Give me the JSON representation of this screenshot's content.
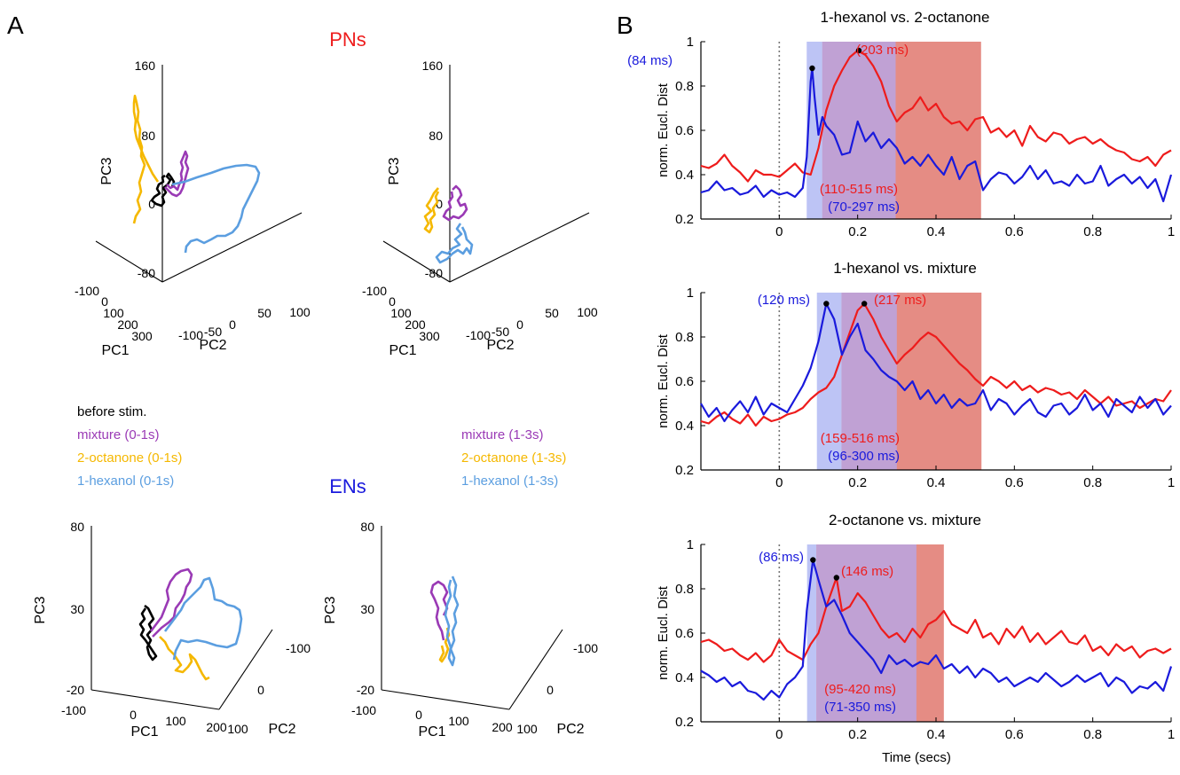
{
  "panel_labels": {
    "a": "A",
    "b": "B"
  },
  "group_titles": {
    "pn": "PNs",
    "en": "ENs"
  },
  "colors": {
    "before": "#000000",
    "mixture": "#9a3ab5",
    "octanone": "#f5b800",
    "hexanol": "#5b9ee0",
    "red": "#ee1c1c",
    "blue": "#1a1adc",
    "pn_title": "#ee1c1c",
    "en_title": "#1a1add",
    "shade_blue": "#bdc4f5",
    "shade_red": "#e58c84",
    "shade_purple": "#c0a1d4"
  },
  "legend_left": [
    {
      "label": "before stim.",
      "color": "#000000"
    },
    {
      "label": "mixture (0-1s)",
      "color": "#9a3ab5"
    },
    {
      "label": "2-octanone (0-1s)",
      "color": "#f5b800"
    },
    {
      "label": "1-hexanol (0-1s)",
      "color": "#5b9ee0"
    }
  ],
  "legend_right": [
    {
      "label": "mixture (1-3s)",
      "color": "#9a3ab5"
    },
    {
      "label": "2-octanone (1-3s)",
      "color": "#f5b800"
    },
    {
      "label": "1-hexanol (1-3s)",
      "color": "#5b9ee0"
    }
  ],
  "pca_pn": {
    "pc3_ticks": [
      "160",
      "80",
      "0",
      "-80"
    ],
    "pc1_ticks": [
      "-100",
      "0",
      "100",
      "200",
      "300"
    ],
    "pc2_ticks": [
      "-100",
      "-50",
      "0",
      "50",
      "100"
    ],
    "labels": {
      "pc1": "PC1",
      "pc2": "PC2",
      "pc3": "PC3"
    }
  },
  "pca_en": {
    "pc3_ticks": [
      "80",
      "30",
      "-20"
    ],
    "pc1_ticks": [
      "-100",
      "0",
      "100",
      "200"
    ],
    "pc2_ticks": [
      "-100",
      "0",
      "100"
    ],
    "labels": {
      "pc1": "PC1",
      "pc2": "PC2",
      "pc3": "PC3"
    }
  },
  "chart_data": [
    {
      "type": "line",
      "title": "1-hexanol vs. 2-octanone",
      "xlabel": "",
      "ylabel": "norm. Eucl. Dist",
      "xlim": [
        -0.2,
        1
      ],
      "ylim": [
        0.2,
        1
      ],
      "x_ticks": [
        "0",
        "0.2",
        "0.4",
        "0.6",
        "0.8",
        "1"
      ],
      "y_ticks": [
        "0.2",
        "0.4",
        "0.6",
        "0.8",
        "1"
      ],
      "shade_blue": [
        0.07,
        0.297
      ],
      "shade_red": [
        0.11,
        0.515
      ],
      "annotations": [
        {
          "text": "(84 ms)",
          "color": "blue"
        },
        {
          "text": "(203 ms)",
          "color": "red"
        },
        {
          "text": "(110-515 ms)",
          "color": "red"
        },
        {
          "text": "(70-297 ms)",
          "color": "blue"
        }
      ],
      "peaks": [
        {
          "x": 0.084,
          "y": 0.88
        },
        {
          "x": 0.203,
          "y": 0.96
        }
      ],
      "series": [
        {
          "color": "red",
          "x": [
            -0.2,
            -0.18,
            -0.16,
            -0.14,
            -0.12,
            -0.1,
            -0.08,
            -0.06,
            -0.04,
            -0.02,
            0,
            0.02,
            0.04,
            0.06,
            0.08,
            0.1,
            0.12,
            0.14,
            0.16,
            0.18,
            0.2,
            0.22,
            0.24,
            0.26,
            0.28,
            0.3,
            0.32,
            0.34,
            0.36,
            0.38,
            0.4,
            0.42,
            0.44,
            0.46,
            0.48,
            0.5,
            0.52,
            0.54,
            0.56,
            0.58,
            0.6,
            0.62,
            0.64,
            0.66,
            0.68,
            0.7,
            0.72,
            0.74,
            0.76,
            0.78,
            0.8,
            0.82,
            0.84,
            0.86,
            0.88,
            0.9,
            0.92,
            0.94,
            0.96,
            0.98,
            1
          ],
          "y": [
            0.44,
            0.43,
            0.45,
            0.49,
            0.44,
            0.41,
            0.37,
            0.42,
            0.4,
            0.4,
            0.39,
            0.42,
            0.45,
            0.41,
            0.4,
            0.52,
            0.69,
            0.8,
            0.87,
            0.93,
            0.96,
            0.94,
            0.89,
            0.82,
            0.71,
            0.64,
            0.68,
            0.7,
            0.75,
            0.69,
            0.72,
            0.66,
            0.63,
            0.64,
            0.6,
            0.65,
            0.66,
            0.59,
            0.61,
            0.57,
            0.6,
            0.53,
            0.62,
            0.57,
            0.55,
            0.59,
            0.58,
            0.54,
            0.56,
            0.57,
            0.54,
            0.56,
            0.53,
            0.51,
            0.5,
            0.47,
            0.46,
            0.48,
            0.44,
            0.49,
            0.51
          ]
        },
        {
          "color": "blue",
          "x": [
            -0.2,
            -0.18,
            -0.16,
            -0.14,
            -0.12,
            -0.1,
            -0.08,
            -0.06,
            -0.04,
            -0.02,
            0,
            0.02,
            0.04,
            0.06,
            0.07,
            0.08,
            0.084,
            0.09,
            0.1,
            0.11,
            0.12,
            0.14,
            0.16,
            0.18,
            0.2,
            0.22,
            0.24,
            0.26,
            0.28,
            0.3,
            0.32,
            0.34,
            0.36,
            0.38,
            0.4,
            0.42,
            0.44,
            0.46,
            0.48,
            0.5,
            0.52,
            0.54,
            0.56,
            0.58,
            0.6,
            0.62,
            0.64,
            0.66,
            0.68,
            0.7,
            0.72,
            0.74,
            0.76,
            0.78,
            0.8,
            0.82,
            0.84,
            0.86,
            0.88,
            0.9,
            0.92,
            0.94,
            0.96,
            0.98,
            1
          ],
          "y": [
            0.32,
            0.33,
            0.37,
            0.33,
            0.34,
            0.31,
            0.32,
            0.35,
            0.3,
            0.33,
            0.31,
            0.32,
            0.3,
            0.34,
            0.48,
            0.82,
            0.88,
            0.75,
            0.58,
            0.66,
            0.62,
            0.58,
            0.49,
            0.5,
            0.64,
            0.55,
            0.59,
            0.52,
            0.56,
            0.52,
            0.45,
            0.48,
            0.44,
            0.49,
            0.44,
            0.4,
            0.48,
            0.38,
            0.44,
            0.46,
            0.33,
            0.38,
            0.41,
            0.4,
            0.36,
            0.39,
            0.44,
            0.38,
            0.42,
            0.36,
            0.37,
            0.35,
            0.4,
            0.36,
            0.37,
            0.44,
            0.35,
            0.38,
            0.4,
            0.36,
            0.39,
            0.34,
            0.38,
            0.28,
            0.4
          ]
        }
      ]
    },
    {
      "type": "line",
      "title": "1-hexanol vs. mixture",
      "xlabel": "",
      "ylabel": "norm. Eucl. Dist",
      "xlim": [
        -0.2,
        1
      ],
      "ylim": [
        0.2,
        1
      ],
      "x_ticks": [
        "0",
        "0.2",
        "0.4",
        "0.6",
        "0.8",
        "1"
      ],
      "y_ticks": [
        "0.2",
        "0.4",
        "0.6",
        "0.8",
        "1"
      ],
      "shade_blue": [
        0.096,
        0.3
      ],
      "shade_red": [
        0.159,
        0.516
      ],
      "annotations": [
        {
          "text": "(120 ms)",
          "color": "blue"
        },
        {
          "text": "(217 ms)",
          "color": "red"
        },
        {
          "text": "(159-516 ms)",
          "color": "red"
        },
        {
          "text": "(96-300 ms)",
          "color": "blue"
        }
      ],
      "peaks": [
        {
          "x": 0.12,
          "y": 0.95
        },
        {
          "x": 0.217,
          "y": 0.95
        }
      ],
      "series": [
        {
          "color": "red",
          "x": [
            -0.2,
            -0.18,
            -0.16,
            -0.14,
            -0.12,
            -0.1,
            -0.08,
            -0.06,
            -0.04,
            -0.02,
            0,
            0.02,
            0.04,
            0.06,
            0.08,
            0.1,
            0.12,
            0.14,
            0.16,
            0.18,
            0.2,
            0.217,
            0.24,
            0.26,
            0.28,
            0.3,
            0.32,
            0.34,
            0.36,
            0.38,
            0.4,
            0.42,
            0.44,
            0.46,
            0.48,
            0.5,
            0.52,
            0.54,
            0.56,
            0.58,
            0.6,
            0.62,
            0.64,
            0.66,
            0.68,
            0.7,
            0.72,
            0.74,
            0.76,
            0.78,
            0.8,
            0.82,
            0.84,
            0.86,
            0.88,
            0.9,
            0.92,
            0.94,
            0.96,
            0.98,
            1
          ],
          "y": [
            0.42,
            0.41,
            0.44,
            0.46,
            0.43,
            0.41,
            0.45,
            0.4,
            0.44,
            0.42,
            0.43,
            0.45,
            0.46,
            0.48,
            0.52,
            0.55,
            0.57,
            0.62,
            0.72,
            0.82,
            0.92,
            0.95,
            0.88,
            0.8,
            0.74,
            0.68,
            0.72,
            0.75,
            0.79,
            0.82,
            0.8,
            0.76,
            0.72,
            0.68,
            0.65,
            0.61,
            0.58,
            0.62,
            0.6,
            0.57,
            0.6,
            0.56,
            0.58,
            0.55,
            0.57,
            0.56,
            0.54,
            0.55,
            0.52,
            0.56,
            0.53,
            0.5,
            0.53,
            0.49,
            0.5,
            0.51,
            0.48,
            0.5,
            0.52,
            0.51,
            0.56
          ]
        },
        {
          "color": "blue",
          "x": [
            -0.2,
            -0.18,
            -0.16,
            -0.14,
            -0.12,
            -0.1,
            -0.08,
            -0.06,
            -0.04,
            -0.02,
            0,
            0.02,
            0.04,
            0.06,
            0.08,
            0.1,
            0.12,
            0.14,
            0.16,
            0.18,
            0.2,
            0.22,
            0.24,
            0.26,
            0.28,
            0.3,
            0.32,
            0.34,
            0.36,
            0.38,
            0.4,
            0.42,
            0.44,
            0.46,
            0.48,
            0.5,
            0.52,
            0.54,
            0.56,
            0.58,
            0.6,
            0.62,
            0.64,
            0.66,
            0.68,
            0.7,
            0.72,
            0.74,
            0.76,
            0.78,
            0.8,
            0.82,
            0.84,
            0.86,
            0.88,
            0.9,
            0.92,
            0.94,
            0.96,
            0.98,
            1
          ],
          "y": [
            0.5,
            0.44,
            0.48,
            0.42,
            0.47,
            0.51,
            0.46,
            0.53,
            0.45,
            0.5,
            0.48,
            0.46,
            0.52,
            0.58,
            0.66,
            0.78,
            0.95,
            0.88,
            0.72,
            0.8,
            0.86,
            0.74,
            0.7,
            0.65,
            0.62,
            0.6,
            0.56,
            0.6,
            0.52,
            0.56,
            0.5,
            0.54,
            0.48,
            0.52,
            0.49,
            0.5,
            0.56,
            0.47,
            0.52,
            0.5,
            0.45,
            0.49,
            0.52,
            0.46,
            0.44,
            0.49,
            0.5,
            0.45,
            0.48,
            0.54,
            0.47,
            0.5,
            0.44,
            0.52,
            0.49,
            0.46,
            0.53,
            0.48,
            0.52,
            0.45,
            0.49
          ]
        }
      ]
    },
    {
      "type": "line",
      "title": "2-octanone vs. mixture",
      "xlabel": "Time (secs)",
      "ylabel": "norm. Eucl. Dist",
      "xlim": [
        -0.2,
        1
      ],
      "ylim": [
        0.2,
        1
      ],
      "x_ticks": [
        "0",
        "0.2",
        "0.4",
        "0.6",
        "0.8",
        "1"
      ],
      "y_ticks": [
        "0.2",
        "0.4",
        "0.6",
        "0.8",
        "1"
      ],
      "shade_blue": [
        0.071,
        0.35
      ],
      "shade_red": [
        0.095,
        0.42
      ],
      "annotations": [
        {
          "text": "(86 ms)",
          "color": "blue"
        },
        {
          "text": "(146 ms)",
          "color": "red"
        },
        {
          "text": "(95-420 ms)",
          "color": "red"
        },
        {
          "text": "(71-350 ms)",
          "color": "blue"
        }
      ],
      "peaks": [
        {
          "x": 0.086,
          "y": 0.93
        },
        {
          "x": 0.146,
          "y": 0.85
        }
      ],
      "series": [
        {
          "color": "red",
          "x": [
            -0.2,
            -0.18,
            -0.16,
            -0.14,
            -0.12,
            -0.1,
            -0.08,
            -0.06,
            -0.04,
            -0.02,
            0,
            0.02,
            0.04,
            0.06,
            0.08,
            0.1,
            0.12,
            0.146,
            0.16,
            0.18,
            0.2,
            0.22,
            0.24,
            0.26,
            0.28,
            0.3,
            0.32,
            0.34,
            0.36,
            0.38,
            0.4,
            0.42,
            0.44,
            0.46,
            0.48,
            0.5,
            0.52,
            0.54,
            0.56,
            0.58,
            0.6,
            0.62,
            0.64,
            0.66,
            0.68,
            0.7,
            0.72,
            0.74,
            0.76,
            0.78,
            0.8,
            0.82,
            0.84,
            0.86,
            0.88,
            0.9,
            0.92,
            0.94,
            0.96,
            0.98,
            1
          ],
          "y": [
            0.56,
            0.57,
            0.55,
            0.52,
            0.53,
            0.5,
            0.48,
            0.51,
            0.47,
            0.5,
            0.57,
            0.52,
            0.5,
            0.48,
            0.55,
            0.6,
            0.72,
            0.85,
            0.7,
            0.72,
            0.78,
            0.74,
            0.68,
            0.62,
            0.58,
            0.6,
            0.56,
            0.62,
            0.58,
            0.64,
            0.66,
            0.7,
            0.64,
            0.62,
            0.6,
            0.66,
            0.58,
            0.6,
            0.55,
            0.62,
            0.58,
            0.63,
            0.56,
            0.6,
            0.55,
            0.58,
            0.61,
            0.56,
            0.55,
            0.59,
            0.52,
            0.54,
            0.5,
            0.55,
            0.52,
            0.54,
            0.49,
            0.52,
            0.53,
            0.51,
            0.53
          ]
        },
        {
          "color": "blue",
          "x": [
            -0.2,
            -0.18,
            -0.16,
            -0.14,
            -0.12,
            -0.1,
            -0.08,
            -0.06,
            -0.04,
            -0.02,
            0,
            0.02,
            0.04,
            0.06,
            0.07,
            0.086,
            0.1,
            0.12,
            0.14,
            0.16,
            0.18,
            0.2,
            0.22,
            0.24,
            0.26,
            0.28,
            0.3,
            0.32,
            0.34,
            0.36,
            0.38,
            0.4,
            0.42,
            0.44,
            0.46,
            0.48,
            0.5,
            0.52,
            0.54,
            0.56,
            0.58,
            0.6,
            0.62,
            0.64,
            0.66,
            0.68,
            0.7,
            0.72,
            0.74,
            0.76,
            0.78,
            0.8,
            0.82,
            0.84,
            0.86,
            0.88,
            0.9,
            0.92,
            0.94,
            0.96,
            0.98,
            1
          ],
          "y": [
            0.43,
            0.41,
            0.38,
            0.4,
            0.36,
            0.38,
            0.34,
            0.33,
            0.3,
            0.34,
            0.31,
            0.37,
            0.4,
            0.45,
            0.7,
            0.93,
            0.84,
            0.72,
            0.75,
            0.68,
            0.6,
            0.56,
            0.52,
            0.48,
            0.42,
            0.5,
            0.46,
            0.48,
            0.45,
            0.47,
            0.46,
            0.5,
            0.44,
            0.46,
            0.42,
            0.45,
            0.4,
            0.44,
            0.42,
            0.38,
            0.4,
            0.36,
            0.38,
            0.4,
            0.38,
            0.42,
            0.39,
            0.36,
            0.38,
            0.41,
            0.38,
            0.4,
            0.42,
            0.36,
            0.4,
            0.38,
            0.33,
            0.36,
            0.35,
            0.38,
            0.34,
            0.45
          ]
        }
      ]
    }
  ]
}
